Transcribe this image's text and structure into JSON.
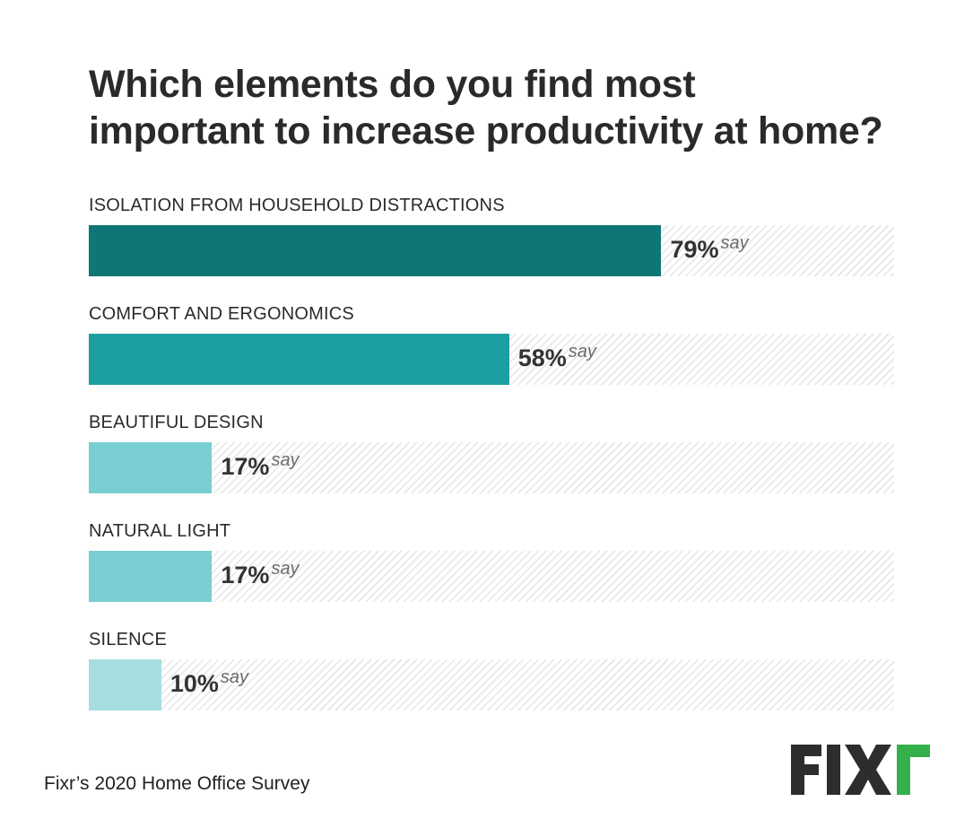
{
  "header": {
    "title_line1": "Which elements do you find most",
    "title_line2": "important to increase productivity at home?"
  },
  "chart_data": {
    "type": "bar",
    "orientation": "horizontal",
    "categories": [
      "ISOLATION FROM HOUSEHOLD DISTRACTIONS",
      "COMFORT AND ERGONOMICS",
      "BEAUTIFUL DESIGN",
      "NATURAL LIGHT",
      "SILENCE"
    ],
    "values": [
      79,
      58,
      17,
      17,
      10
    ],
    "value_labels": [
      "79%",
      "58%",
      "17%",
      "17%",
      "10%"
    ],
    "value_suffix": "say",
    "xlim": [
      0,
      100
    ],
    "grid": false,
    "colors": [
      "#0e7775",
      "#1b9fa0",
      "#79ced2",
      "#79ced2",
      "#a6dde0"
    ]
  },
  "footer": {
    "source": "Fixr’s 2020 Home Office Survey"
  },
  "logo": {
    "text": "FIXR",
    "colors": {
      "letters": "#2d2d2d",
      "accent": "#34b04a"
    }
  }
}
